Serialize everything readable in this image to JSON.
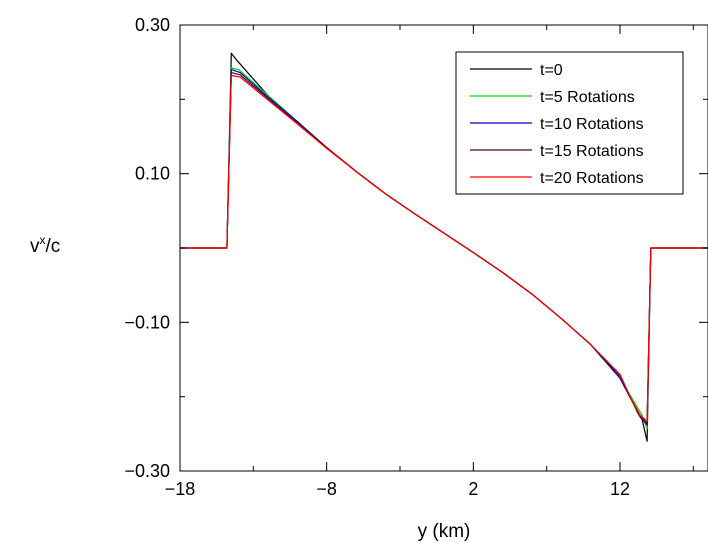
{
  "chart_data": {
    "type": "line",
    "title": "",
    "xlabel": "y (km)",
    "ylabel_base": "v",
    "ylabel_sup": "x",
    "ylabel_tail": "/c",
    "xlim": [
      -18,
      18
    ],
    "ylim": [
      -0.3,
      0.3
    ],
    "x_major_ticks": [
      -18,
      -8,
      2,
      12
    ],
    "x_tick_labels": [
      "−18",
      "−8",
      "2",
      "12"
    ],
    "x_minor_ticks": [
      -13,
      -3,
      7,
      17
    ],
    "y_major_ticks": [
      0.3,
      0.1,
      -0.1,
      -0.3
    ],
    "y_tick_labels": [
      "0.30",
      "0.10",
      "−0.10",
      "−0.30"
    ],
    "y_minor_ticks": [
      0.2,
      0.0,
      -0.2
    ],
    "grid": false,
    "legend_position": "top-right",
    "series": [
      {
        "name": "t=0",
        "color": "#000000",
        "x": [
          -18,
          -14.8,
          -14.5,
          -14.1,
          -12,
          -10,
          -8,
          -6,
          -4,
          -2,
          0,
          2,
          4,
          6,
          8,
          10,
          12,
          13.5,
          13.85,
          14.1,
          18
        ],
        "y": [
          0,
          0,
          0.262,
          0.252,
          0.205,
          0.17,
          0.135,
          0.103,
          0.073,
          0.046,
          0.02,
          -0.006,
          -0.033,
          -0.062,
          -0.095,
          -0.13,
          -0.175,
          -0.23,
          -0.26,
          0,
          0
        ]
      },
      {
        "name": "t=5 Rotations",
        "color": "#00dd00",
        "x": [
          -18,
          -14.8,
          -14.5,
          -14,
          -12,
          -10,
          -8,
          -6,
          -4,
          -2,
          0,
          2,
          4,
          6,
          8,
          10,
          12,
          13.5,
          13.85,
          14.1,
          18
        ],
        "y": [
          0,
          0,
          0.242,
          0.24,
          0.205,
          0.17,
          0.135,
          0.103,
          0.073,
          0.046,
          0.02,
          -0.006,
          -0.033,
          -0.062,
          -0.095,
          -0.13,
          -0.175,
          -0.225,
          -0.243,
          0,
          0
        ]
      },
      {
        "name": "t=10 Rotations",
        "color": "#0000cc",
        "x": [
          -18,
          -14.8,
          -14.5,
          -13.9,
          -12,
          -10,
          -8,
          -6,
          -4,
          -2,
          0,
          2,
          4,
          6,
          8,
          10,
          12,
          13.4,
          13.85,
          14.1,
          18
        ],
        "y": [
          0,
          0,
          0.24,
          0.236,
          0.203,
          0.17,
          0.135,
          0.103,
          0.073,
          0.046,
          0.02,
          -0.006,
          -0.033,
          -0.062,
          -0.095,
          -0.13,
          -0.175,
          -0.228,
          -0.238,
          0,
          0
        ]
      },
      {
        "name": "t=15 Rotations",
        "color": "#550022",
        "x": [
          -18,
          -14.8,
          -14.5,
          -13.9,
          -12,
          -10,
          -8,
          -6,
          -4,
          -2,
          0,
          2,
          4,
          6,
          8,
          10,
          12,
          13.3,
          13.85,
          14.1,
          18
        ],
        "y": [
          0,
          0,
          0.236,
          0.233,
          0.201,
          0.168,
          0.135,
          0.103,
          0.073,
          0.046,
          0.02,
          -0.006,
          -0.033,
          -0.062,
          -0.095,
          -0.13,
          -0.172,
          -0.225,
          -0.236,
          0,
          0
        ]
      },
      {
        "name": "t=20 Rotations",
        "color": "#ff0000",
        "x": [
          -18,
          -14.8,
          -14.5,
          -13.9,
          -12,
          -10,
          -8,
          -6,
          -4,
          -2,
          0,
          2,
          4,
          6,
          8,
          10,
          12,
          13.2,
          13.85,
          14.1,
          18
        ],
        "y": [
          0,
          0,
          0.232,
          0.23,
          0.199,
          0.167,
          0.134,
          0.103,
          0.073,
          0.046,
          0.02,
          -0.006,
          -0.033,
          -0.062,
          -0.095,
          -0.13,
          -0.17,
          -0.222,
          -0.233,
          0,
          0
        ]
      }
    ]
  }
}
